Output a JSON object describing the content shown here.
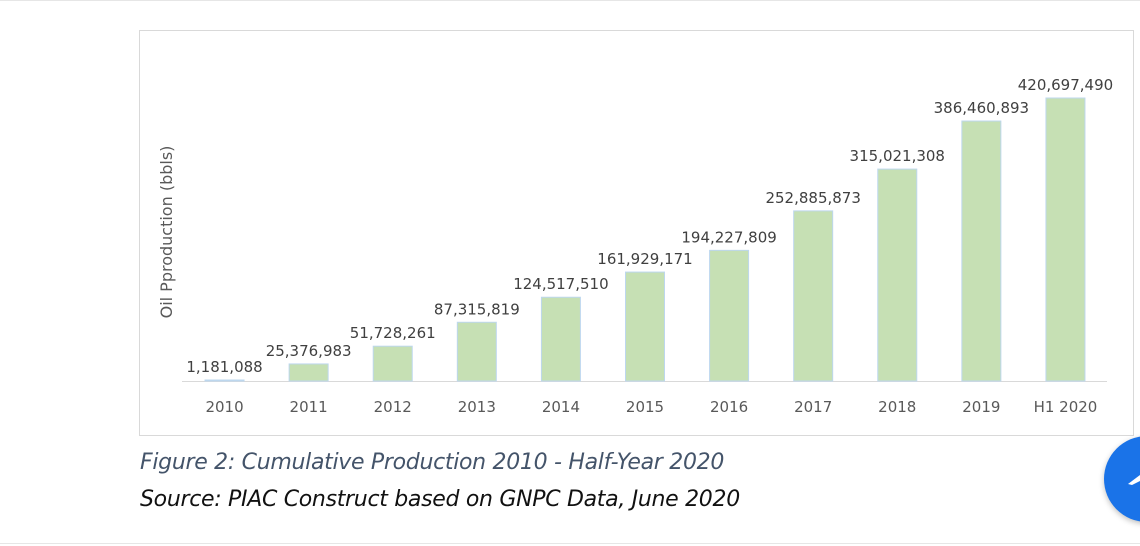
{
  "chart_data": {
    "type": "bar",
    "title": "",
    "xlabel": "",
    "ylabel": "Oil Pproduction (bbls)",
    "categories": [
      "2010",
      "2011",
      "2012",
      "2013",
      "2014",
      "2015",
      "2016",
      "2017",
      "2018",
      "2019",
      "H1 2020"
    ],
    "values": [
      1181088,
      25376983,
      51728261,
      87315819,
      124517510,
      161929171,
      194227809,
      252885873,
      315021308,
      386460893,
      420697490
    ],
    "data_labels": [
      "1,181,088",
      "25,376,983",
      "51,728,261",
      "87,315,819",
      "124,517,510",
      "161,929,171",
      "194,227,809",
      "252,885,873",
      "315,021,308",
      "386,460,893",
      "420,697,490"
    ],
    "ylim": [
      0,
      450000000
    ],
    "grid": false,
    "legend": "none",
    "bar_color": "#c6e0b4",
    "bar_edge_color": "#bdd7ee"
  },
  "caption": {
    "figure": "Figure 2: Cumulative Production 2010 - Half-Year 2020",
    "source": "Source: PIAC Construct based on GNPC Data, June 2020"
  },
  "fab": {
    "icon": "edit-pencil-icon",
    "color": "#1a73e8"
  }
}
